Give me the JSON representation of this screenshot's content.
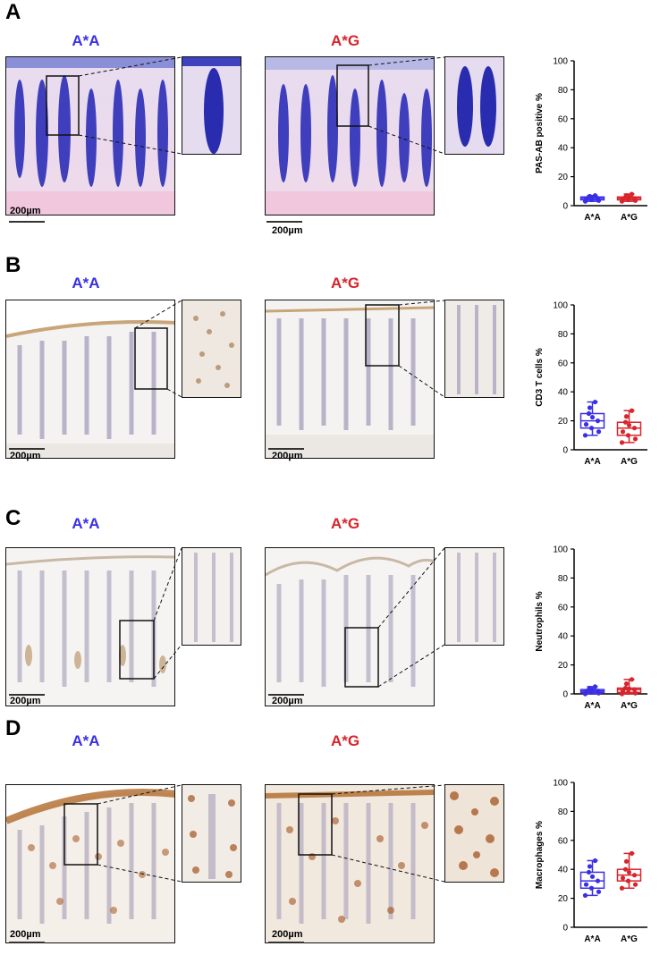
{
  "figure": {
    "panels": [
      {
        "id": "A",
        "genotypes": [
          "A*A",
          "A*G"
        ],
        "scale_bars": [
          "200µm",
          "200µm"
        ],
        "stain": "pas",
        "colors": {
          "AA": "#3b2fe6",
          "AG": "#d8242b"
        }
      },
      {
        "id": "B",
        "genotypes": [
          "A*A",
          "A*G"
        ],
        "scale_bars": [
          "200µm",
          "200µm"
        ],
        "stain": "cd3"
      },
      {
        "id": "C",
        "genotypes": [
          "A*A",
          "A*G"
        ],
        "scale_bars": [
          "200µm",
          "200µm"
        ],
        "stain": "neutro"
      },
      {
        "id": "D",
        "genotypes": [
          "A*A",
          "A*G"
        ],
        "scale_bars": [
          "200µm",
          "200µm"
        ],
        "stain": "macro"
      }
    ]
  },
  "chart_data": [
    {
      "type": "box",
      "title": "",
      "ylabel": "PAS-AB positive %",
      "categories": [
        "A*A",
        "A*G"
      ],
      "ylim": [
        0,
        100
      ],
      "yticks": [
        0,
        20,
        40,
        60,
        80,
        100
      ],
      "boxes": [
        {
          "name": "A*A",
          "color": "#3b2fe6",
          "min": 3,
          "q1": 4,
          "median": 5,
          "q3": 6,
          "max": 7
        },
        {
          "name": "A*G",
          "color": "#d8242b",
          "min": 3,
          "q1": 4,
          "median": 5,
          "q3": 6,
          "max": 8
        }
      ]
    },
    {
      "type": "box",
      "title": "",
      "ylabel": "CD3 T cells %",
      "categories": [
        "A*A",
        "A*G"
      ],
      "ylim": [
        0,
        100
      ],
      "yticks": [
        0,
        20,
        40,
        60,
        80,
        100
      ],
      "boxes": [
        {
          "name": "A*A",
          "color": "#3b2fe6",
          "min": 10,
          "q1": 15,
          "median": 20,
          "q3": 25,
          "max": 33
        },
        {
          "name": "A*G",
          "color": "#d8242b",
          "min": 5,
          "q1": 10,
          "median": 15,
          "q3": 19,
          "max": 27
        }
      ]
    },
    {
      "type": "box",
      "title": "",
      "ylabel": "Neutrophils %",
      "categories": [
        "A*A",
        "A*G"
      ],
      "ylim": [
        0,
        100
      ],
      "yticks": [
        0,
        20,
        40,
        60,
        80,
        100
      ],
      "boxes": [
        {
          "name": "A*A",
          "color": "#3b2fe6",
          "min": 0,
          "q1": 1,
          "median": 2,
          "q3": 3,
          "max": 5
        },
        {
          "name": "A*G",
          "color": "#d8242b",
          "min": 0,
          "q1": 1,
          "median": 3,
          "q3": 4,
          "max": 10
        }
      ]
    },
    {
      "type": "box",
      "title": "",
      "ylabel": "Macrophages %",
      "categories": [
        "A*A",
        "A*G"
      ],
      "ylim": [
        0,
        100
      ],
      "yticks": [
        0,
        20,
        40,
        60,
        80,
        100
      ],
      "boxes": [
        {
          "name": "A*A",
          "color": "#3b2fe6",
          "min": 22,
          "q1": 27,
          "median": 32,
          "q3": 38,
          "max": 46
        },
        {
          "name": "A*G",
          "color": "#d8242b",
          "min": 27,
          "q1": 32,
          "median": 36,
          "q3": 40,
          "max": 51
        }
      ]
    }
  ]
}
